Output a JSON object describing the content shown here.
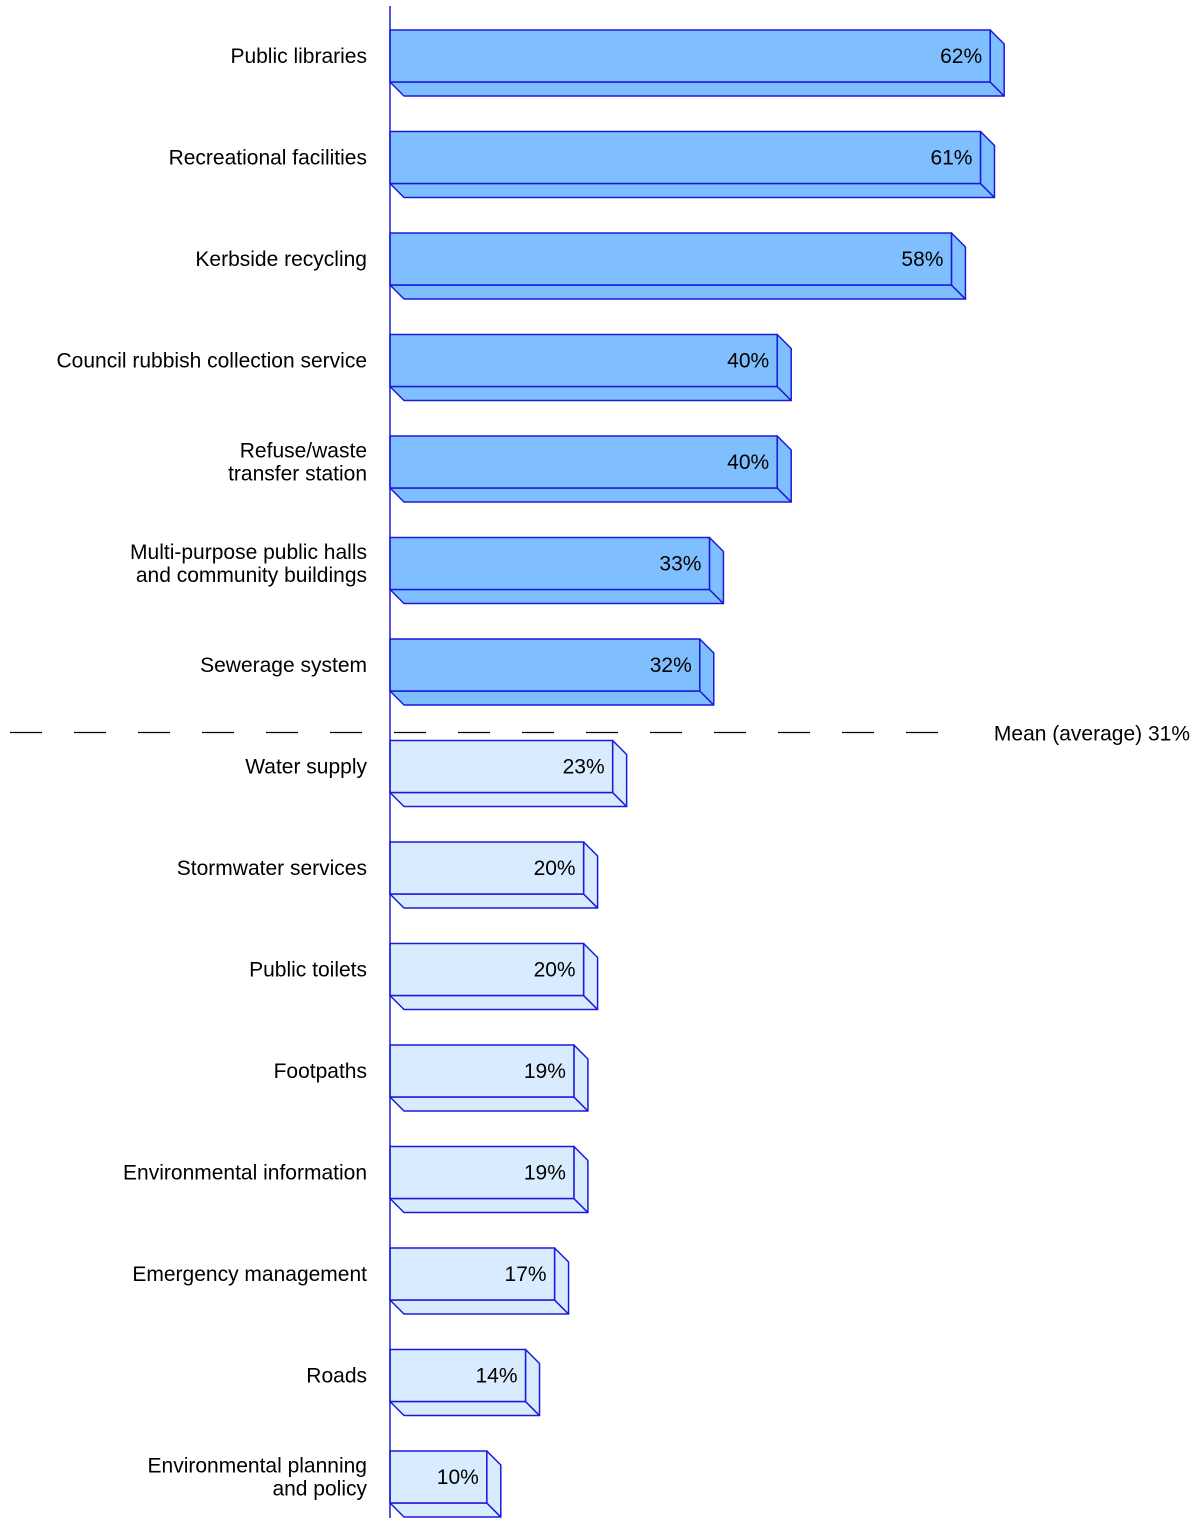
{
  "chart_data": {
    "type": "bar",
    "orientation": "horizontal",
    "categories": [
      [
        "Public libraries"
      ],
      [
        "Recreational facilities"
      ],
      [
        "Kerbside recycling"
      ],
      [
        "Council rubbish collection service"
      ],
      [
        "Refuse/waste",
        "transfer station"
      ],
      [
        "Multi-purpose public halls",
        "and community buildings"
      ],
      [
        "Sewerage system"
      ],
      [
        "Water supply"
      ],
      [
        "Stormwater services"
      ],
      [
        "Public toilets"
      ],
      [
        "Footpaths"
      ],
      [
        "Environmental information"
      ],
      [
        "Emergency management"
      ],
      [
        "Roads"
      ],
      [
        "Environmental planning",
        "and policy"
      ]
    ],
    "values": [
      62,
      61,
      58,
      40,
      40,
      33,
      32,
      23,
      20,
      20,
      19,
      19,
      17,
      14,
      10
    ],
    "value_labels": [
      "62%",
      "61%",
      "58%",
      "40%",
      "40%",
      "33%",
      "32%",
      "23%",
      "20%",
      "20%",
      "19%",
      "19%",
      "17%",
      "14%",
      "10%"
    ],
    "mean": {
      "value": 31,
      "label": "Mean (average) 31%"
    },
    "colors": {
      "above_mean_fill": "#80bfff",
      "below_mean_fill": "#d9ecff",
      "edge": "#1a1adb",
      "axis": "#1a1adb",
      "mean_line": "#000000"
    },
    "xlim": [
      0,
      62
    ],
    "grid": false,
    "legend": "none"
  }
}
